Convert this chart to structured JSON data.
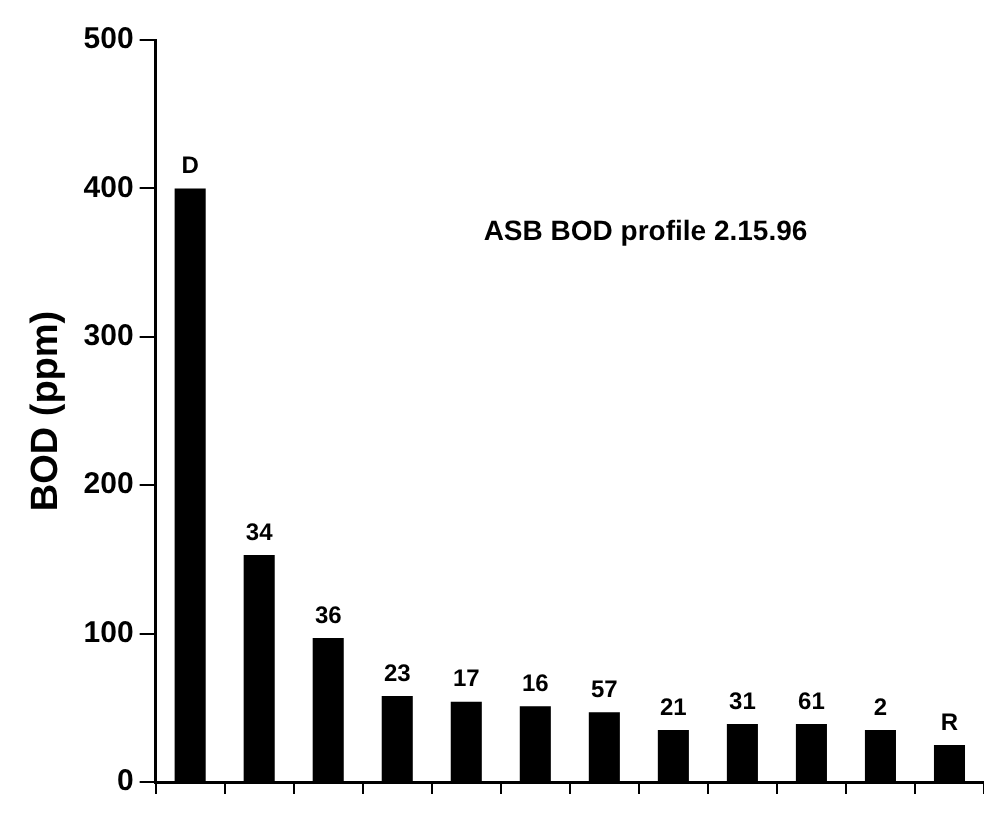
{
  "chart_data": {
    "type": "bar",
    "title": "ASB BOD profile 2.15.96",
    "ylabel": "BOD (ppm)",
    "categories": [
      "D",
      "34",
      "36",
      "23",
      "17",
      "16",
      "57",
      "21",
      "31",
      "61",
      "2",
      "R"
    ],
    "values": [
      400,
      153,
      97,
      58,
      54,
      51,
      47,
      35,
      39,
      39,
      35,
      25
    ],
    "color": "#000000",
    "ylim": [
      0,
      500
    ],
    "yticks": [
      0,
      100,
      200,
      300,
      400,
      500
    ],
    "grid": false,
    "legend": false
  }
}
